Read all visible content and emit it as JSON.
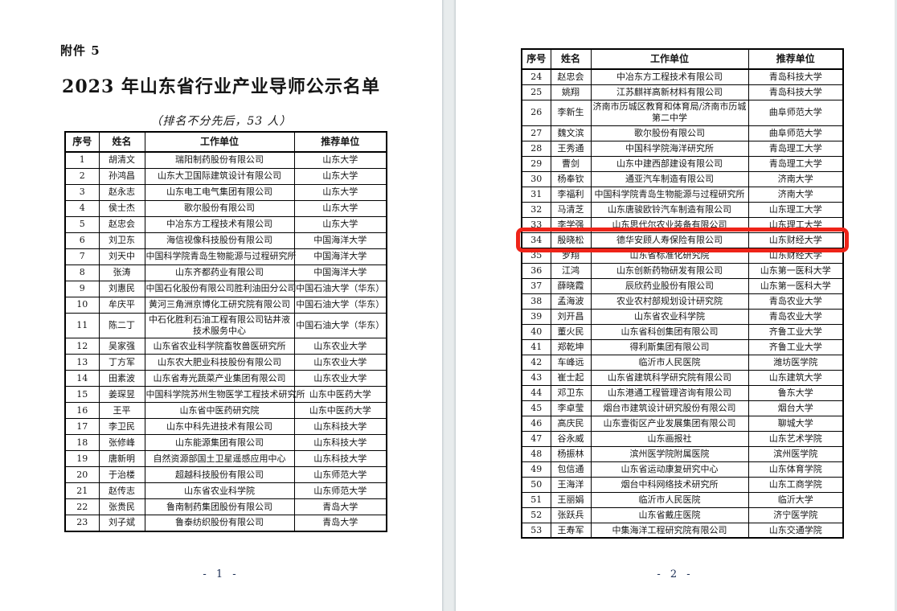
{
  "table_headers": [
    "序号",
    "姓名",
    "工作单位",
    "推荐单位"
  ],
  "colors": {
    "table_border": "#000000",
    "page_gap": "#e8eced",
    "highlight_red": "#ee2318"
  },
  "page1": {
    "attachment_label": "附件 5",
    "title": "2023 年山东省行业产业导师公示名单",
    "subtitle": "（排名不分先后，53 人）",
    "page_number": "- 1 -",
    "rows": [
      [
        "1",
        "胡清文",
        "瑞阳制药股份有限公司",
        "山东大学"
      ],
      [
        "2",
        "孙鸿昌",
        "山东大卫国际建筑设计有限公司",
        "山东大学"
      ],
      [
        "3",
        "赵永志",
        "山东电工电气集团有限公司",
        "山东大学"
      ],
      [
        "4",
        "侯士杰",
        "歌尔股份有限公司",
        "山东大学"
      ],
      [
        "5",
        "赵忠会",
        "中冶东方工程技术有限公司",
        "山东大学"
      ],
      [
        "6",
        "刘卫东",
        "海信视像科技股份有限公司",
        "中国海洋大学"
      ],
      [
        "7",
        "刘天中",
        "中国科学院青岛生物能源与过程研究所",
        "中国海洋大学"
      ],
      [
        "8",
        "张涛",
        "山东齐都药业有限公司",
        "中国海洋大学"
      ],
      [
        "9",
        "刘惠民",
        "中国石化股份有限公司胜利油田分公司",
        "中国石油大学（华东）"
      ],
      [
        "10",
        "牟庆平",
        "黄河三角洲京博化工研究院有限公司",
        "中国石油大学（华东）"
      ],
      [
        "11",
        "陈二丁",
        "中石化胜利石油工程有限公司钻井液技术服务中心",
        "中国石油大学（华东）"
      ],
      [
        "12",
        "吴家强",
        "山东省农业科学院畜牧兽医研究所",
        "山东农业大学"
      ],
      [
        "13",
        "丁方军",
        "山东农大肥业科技股份有限公司",
        "山东农业大学"
      ],
      [
        "14",
        "田素波",
        "山东省寿光蔬菜产业集团有限公司",
        "山东农业大学"
      ],
      [
        "15",
        "姜琛昱",
        "中国科学院苏州生物医学工程技术研究所",
        "山东中医药大学"
      ],
      [
        "16",
        "王平",
        "山东省中医药研究院",
        "山东中医药大学"
      ],
      [
        "17",
        "李卫民",
        "山东中科先进技术有限公司",
        "山东科技大学"
      ],
      [
        "18",
        "张修峰",
        "山东能源集团有限公司",
        "山东科技大学"
      ],
      [
        "19",
        "唐新明",
        "自然资源部国土卫星遥感应用中心",
        "山东科技大学"
      ],
      [
        "20",
        "于治楼",
        "超越科技股份有限公司",
        "山东师范大学"
      ],
      [
        "21",
        "赵传志",
        "山东省农业科学院",
        "山东师范大学"
      ],
      [
        "22",
        "张贵民",
        "鲁南制药集团股份有限公司",
        "青岛大学"
      ],
      [
        "23",
        "刘子斌",
        "鲁泰纺织股份有限公司",
        "青岛大学"
      ]
    ]
  },
  "page2": {
    "page_number": "- 2 -",
    "highlight": {
      "row_index": 10,
      "row_no": "34",
      "color": "#ee2318"
    },
    "rows": [
      [
        "24",
        "赵忠会",
        "中冶东方工程技术有限公司",
        "青岛科技大学"
      ],
      [
        "25",
        "姚翔",
        "江苏麒祥高新材料有限公司",
        "青岛科技大学"
      ],
      [
        "26",
        "李新生",
        "济南市历城区教育和体育局/济南市历城第二中学",
        "曲阜师范大学"
      ],
      [
        "27",
        "魏文滨",
        "歌尔股份有限公司",
        "曲阜师范大学"
      ],
      [
        "28",
        "王秀通",
        "中国科学院海洋研究所",
        "青岛理工大学"
      ],
      [
        "29",
        "曹剑",
        "山东中建西部建设有限公司",
        "青岛理工大学"
      ],
      [
        "30",
        "杨奉钦",
        "通亚汽车制造有限公司",
        "济南大学"
      ],
      [
        "31",
        "李福利",
        "中国科学院青岛生物能源与过程研究所",
        "济南大学"
      ],
      [
        "32",
        "马清芝",
        "山东唐骏欧铃汽车制造有限公司",
        "山东理工大学"
      ],
      [
        "33",
        "李学强",
        "山东思代尔农业装备有限公司",
        "山东理工大学"
      ],
      [
        "34",
        "殷晓松",
        "德华安顾人寿保险有限公司",
        "山东财经大学"
      ],
      [
        "35",
        "罗翔",
        "山东省标准化研究院",
        "山东财经大学"
      ],
      [
        "36",
        "江鸿",
        "山东创新药物研发有限公司",
        "山东第一医科大学"
      ],
      [
        "37",
        "薛晓霞",
        "辰欣药业股份有限公司",
        "山东第一医科大学"
      ],
      [
        "38",
        "孟海波",
        "农业农村部规划设计研究院",
        "青岛农业大学"
      ],
      [
        "39",
        "刘开昌",
        "山东省农业科学院",
        "青岛农业大学"
      ],
      [
        "40",
        "董火民",
        "山东省科创集团有限公司",
        "齐鲁工业大学"
      ],
      [
        "41",
        "郑乾坤",
        "得利斯集团有限公司",
        "齐鲁工业大学"
      ],
      [
        "42",
        "车峰远",
        "临沂市人民医院",
        "潍坊医学院"
      ],
      [
        "43",
        "崔士起",
        "山东省建筑科学研究院有限公司",
        "山东建筑大学"
      ],
      [
        "44",
        "邓卫东",
        "山东港通工程管理咨询有限公司",
        "鲁东大学"
      ],
      [
        "45",
        "李卓莹",
        "烟台市建筑设计研究股份有限公司",
        "烟台大学"
      ],
      [
        "46",
        "高庆民",
        "山东壹街区产业发展集团有限公司",
        "聊城大学"
      ],
      [
        "47",
        "谷永威",
        "山东画报社",
        "山东艺术学院"
      ],
      [
        "48",
        "杨振林",
        "滨州医学院附属医院",
        "滨州医学院"
      ],
      [
        "49",
        "包信通",
        "山东省运动康复研究中心",
        "山东体育学院"
      ],
      [
        "50",
        "王海洋",
        "烟台中科网络技术研究所",
        "山东工商学院"
      ],
      [
        "51",
        "王丽娟",
        "临沂市人民医院",
        "临沂大学"
      ],
      [
        "52",
        "张跃兵",
        "山东省戴庄医院",
        "济宁医学院"
      ],
      [
        "53",
        "王寿军",
        "中集海洋工程研究院有限公司",
        "山东交通学院"
      ]
    ]
  }
}
